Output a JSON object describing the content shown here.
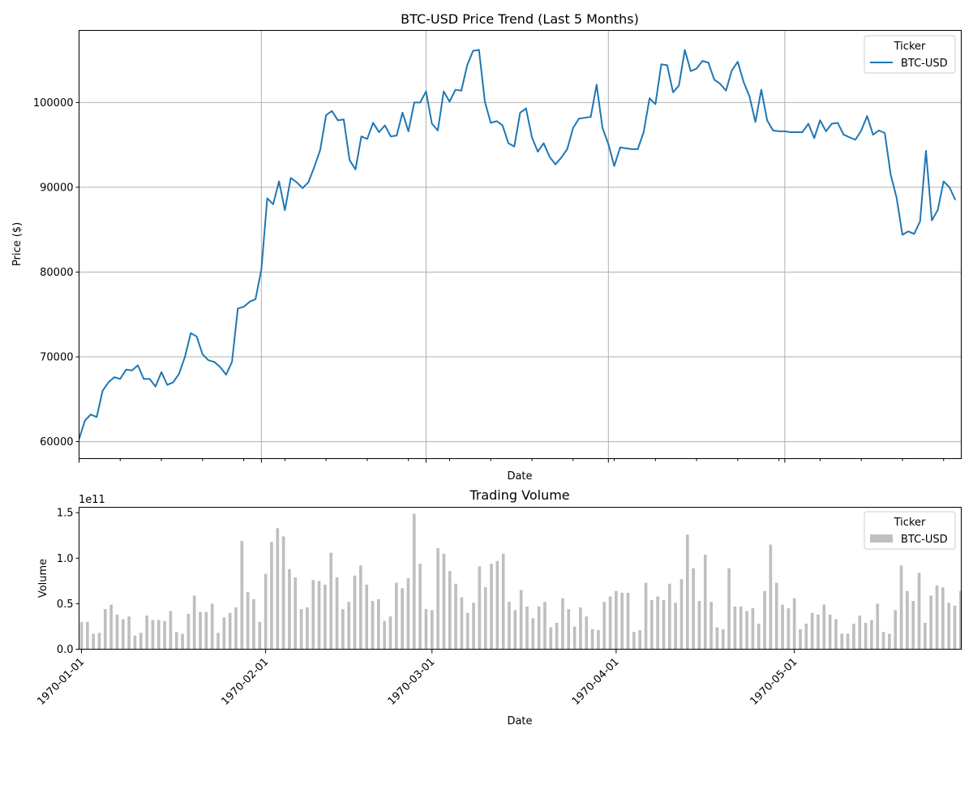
{
  "chart_data": [
    {
      "type": "line",
      "title": "BTC-USD Price Trend (Last 5 Months)",
      "xlabel": "Date",
      "ylabel": "Price ($)",
      "ylim": [
        58000,
        108500
      ],
      "yticks": [
        60000,
        70000,
        80000,
        90000,
        100000
      ],
      "grid": true,
      "legend": {
        "title": "Ticker",
        "placement": "top-right",
        "entries": [
          "BTC-USD"
        ]
      },
      "x_start": "1970-01-01",
      "xlim": [
        "1970-01-01",
        "1970-05-31"
      ],
      "series": [
        {
          "name": "BTC-USD",
          "color": "#1f77b4",
          "values": [
            60300,
            62500,
            63200,
            62900,
            66000,
            67000,
            67600,
            67400,
            68500,
            68400,
            69000,
            67400,
            67400,
            66500,
            68200,
            66700,
            67000,
            68000,
            70000,
            72800,
            72400,
            70300,
            69600,
            69400,
            68800,
            67900,
            69400,
            75700,
            75900,
            76500,
            76800,
            80300,
            88700,
            88000,
            90700,
            87300,
            91100,
            90600,
            89900,
            90600,
            92400,
            94400,
            98500,
            99000,
            97900,
            98000,
            93200,
            92100,
            96000,
            95700,
            97600,
            96500,
            97300,
            96000,
            96100,
            98800,
            96600,
            100000,
            100000,
            101300,
            97500,
            96700,
            101300,
            100100,
            101500,
            101400,
            104400,
            106100,
            106200,
            100100,
            97600,
            97800,
            97300,
            95200,
            94800,
            98800,
            99300,
            95900,
            94200,
            95200,
            93600,
            92700,
            93500,
            94500,
            97000,
            98100,
            98200,
            98300,
            102100,
            97000,
            95100,
            92500,
            94700,
            94600,
            94500,
            94500,
            96500,
            100500,
            99800,
            104500,
            104400,
            101200,
            102000,
            106200,
            103700,
            104000,
            104900,
            104700,
            102700,
            102200,
            101400,
            103800,
            104800,
            102400,
            100700,
            97700,
            101500,
            97900,
            96700,
            96600,
            96600,
            96500,
            96500,
            96500,
            97500,
            95800,
            97900,
            96600,
            97500,
            97600,
            96200,
            95900,
            95600,
            96700,
            98400,
            96200,
            96700,
            96400,
            91500,
            88800,
            84400,
            84800,
            84500,
            86000,
            94300,
            86100,
            87300,
            90700,
            90000,
            88500
          ]
        }
      ]
    },
    {
      "type": "bar",
      "title": "Trading Volume",
      "xlabel": "Date",
      "ylabel": "Volume",
      "scale_note": "1e11",
      "ylim": [
        0,
        1.56
      ],
      "yticks": [
        "0.0",
        "0.5",
        "1.0",
        "1.5"
      ],
      "grid": false,
      "legend": {
        "title": "Ticker",
        "placement": "top-right",
        "entries": [
          "BTC-USD"
        ]
      },
      "x_start": "1970-01-01",
      "xticks": [
        "1970-01-01",
        "1970-02-01",
        "1970-03-01",
        "1970-04-01",
        "1970-05-01"
      ],
      "series": [
        {
          "name": "BTC-USD",
          "color": "#bfbfbf",
          "values": [
            0.3,
            0.3,
            0.17,
            0.18,
            0.44,
            0.49,
            0.38,
            0.33,
            0.36,
            0.15,
            0.18,
            0.37,
            0.32,
            0.32,
            0.31,
            0.42,
            0.19,
            0.17,
            0.39,
            0.59,
            0.41,
            0.41,
            0.5,
            0.18,
            0.35,
            0.4,
            0.46,
            1.19,
            0.63,
            0.55,
            0.3,
            0.83,
            1.18,
            1.33,
            1.24,
            0.88,
            0.79,
            0.44,
            0.46,
            0.76,
            0.75,
            0.71,
            1.06,
            0.79,
            0.44,
            0.52,
            0.81,
            0.92,
            0.71,
            0.53,
            0.55,
            0.31,
            0.36,
            0.73,
            0.67,
            0.78,
            1.49,
            0.94,
            0.44,
            0.43,
            1.11,
            1.05,
            0.86,
            0.72,
            0.57,
            0.4,
            0.51,
            0.91,
            0.68,
            0.94,
            0.97,
            1.05,
            0.52,
            0.43,
            0.65,
            0.47,
            0.34,
            0.47,
            0.52,
            0.24,
            0.29,
            0.56,
            0.44,
            0.25,
            0.46,
            0.36,
            0.22,
            0.21,
            0.52,
            0.58,
            0.64,
            0.62,
            0.62,
            0.19,
            0.21,
            0.73,
            0.54,
            0.58,
            0.54,
            0.72,
            0.51,
            0.77,
            1.26,
            0.89,
            0.53,
            1.04,
            0.52,
            0.24,
            0.22,
            0.89,
            0.47,
            0.47,
            0.42,
            0.45,
            0.28,
            0.64,
            1.15,
            0.73,
            0.49,
            0.45,
            0.56,
            0.22,
            0.28,
            0.4,
            0.38,
            0.49,
            0.38,
            0.33,
            0.17,
            0.17,
            0.28,
            0.37,
            0.29,
            0.32,
            0.5,
            0.19,
            0.17,
            0.43,
            0.92,
            0.64,
            0.53,
            0.84,
            0.29,
            0.59,
            0.7,
            0.68,
            0.51,
            0.48,
            0.64
          ]
        }
      ]
    }
  ]
}
